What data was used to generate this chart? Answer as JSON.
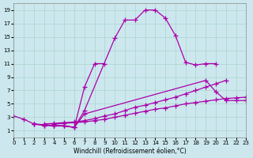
{
  "xlabel": "Windchill (Refroidissement éolien,°C)",
  "bg_color": "#cce8ee",
  "line_color": "#aa00aa",
  "grid_color": "#aad4cc",
  "xlim": [
    0,
    23
  ],
  "ylim": [
    0,
    20
  ],
  "xticks": [
    0,
    1,
    2,
    3,
    4,
    5,
    6,
    7,
    8,
    9,
    10,
    11,
    12,
    13,
    14,
    15,
    16,
    17,
    18,
    19,
    20,
    21,
    22,
    23
  ],
  "yticks": [
    1,
    3,
    5,
    7,
    9,
    11,
    13,
    15,
    17,
    19
  ],
  "lines": [
    {
      "x": [
        0,
        1,
        2,
        3,
        4,
        5,
        6,
        7,
        8,
        9
      ],
      "y": [
        3.2,
        2.7,
        2.0,
        1.8,
        1.8,
        1.7,
        1.5,
        7.5,
        11.0,
        11.0
      ]
    },
    {
      "x": [
        2,
        3,
        4,
        5,
        6,
        7,
        10,
        11,
        12,
        13,
        14,
        15,
        16,
        17,
        18,
        19,
        20
      ],
      "y": [
        2.0,
        1.9,
        1.8,
        1.7,
        1.5,
        4.0,
        14.8,
        17.5,
        17.5,
        19.0,
        19.0,
        17.8,
        15.2,
        11.2,
        10.8,
        11.0,
        11.0
      ]
    },
    {
      "x": [
        2,
        3,
        4,
        5,
        6,
        7,
        19,
        20,
        21,
        22,
        23
      ],
      "y": [
        2.0,
        1.8,
        1.7,
        1.7,
        1.5,
        3.5,
        8.5,
        6.8,
        5.5,
        5.5,
        5.5
      ]
    },
    {
      "x": [
        3,
        4,
        5,
        6,
        7,
        8,
        9,
        10,
        11,
        12,
        13,
        14,
        15,
        16,
        17,
        18,
        19,
        20,
        21
      ],
      "y": [
        2.0,
        2.1,
        2.2,
        2.3,
        2.5,
        2.8,
        3.2,
        3.5,
        4.0,
        4.5,
        4.8,
        5.2,
        5.6,
        6.0,
        6.5,
        7.0,
        7.5,
        8.0,
        8.5
      ]
    },
    {
      "x": [
        4,
        5,
        6,
        7,
        8,
        9,
        10,
        11,
        12,
        13,
        14,
        15,
        16,
        17,
        18,
        19,
        20,
        21,
        22,
        23
      ],
      "y": [
        2.0,
        2.1,
        2.2,
        2.3,
        2.5,
        2.7,
        3.0,
        3.3,
        3.6,
        3.9,
        4.2,
        4.4,
        4.7,
        5.0,
        5.2,
        5.4,
        5.6,
        5.8,
        5.9,
        6.0
      ]
    }
  ]
}
